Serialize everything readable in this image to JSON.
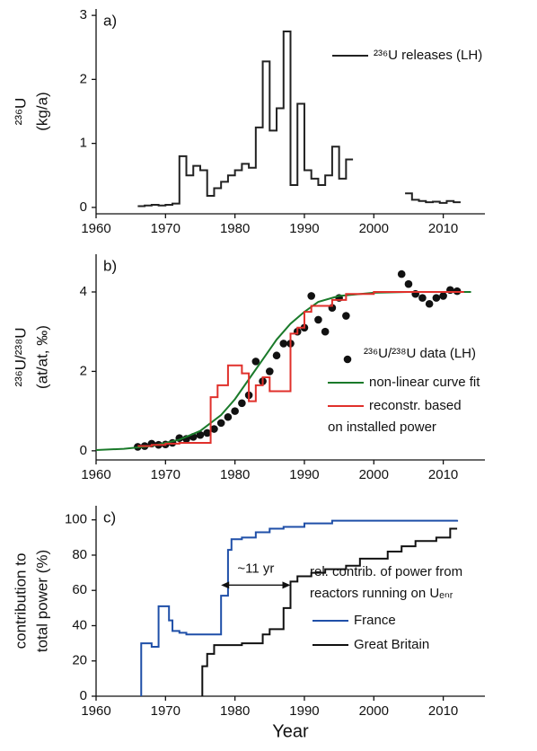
{
  "chart_data": [
    {
      "type": "line",
      "panel_label": "a)",
      "ylabel": [
        "²³⁶U",
        "(kg/a)"
      ],
      "xlim": [
        1960,
        2016
      ],
      "xticks": [
        1960,
        1970,
        1980,
        1990,
        2000,
        2010
      ],
      "ylim": [
        -0.1,
        3.1
      ],
      "yticks": [
        0,
        1,
        2,
        3
      ],
      "series": [
        {
          "name": "²³⁶U releases (LH)",
          "kind": "step",
          "color": "#222222",
          "x": [
            1966,
            1967,
            1968,
            1969,
            1970,
            1971,
            1972,
            1973,
            1974,
            1975,
            1976,
            1977,
            1978,
            1979,
            1980,
            1981,
            1982,
            1983,
            1984,
            1985,
            1986,
            1987,
            1988,
            1989,
            1990,
            1991,
            1992,
            1993,
            1994,
            1995,
            1996,
            1997,
            2000,
            2004.5,
            2005.5,
            2006.5,
            2007.5,
            2008.5,
            2009.5,
            2010.5,
            2011.5,
            2012.5
          ],
          "values": [
            0.02,
            0.03,
            0.04,
            0.03,
            0.04,
            0.06,
            0.8,
            0.5,
            0.65,
            0.58,
            0.18,
            0.3,
            0.4,
            0.5,
            0.58,
            0.68,
            0.62,
            1.25,
            2.28,
            1.2,
            1.55,
            2.75,
            0.35,
            1.62,
            0.58,
            0.45,
            0.35,
            0.5,
            0.95,
            0.45,
            0.75,
            0.75,
            null,
            0.22,
            0.12,
            0.1,
            0.08,
            0.09,
            0.07,
            0.1,
            0.08,
            0.08
          ]
        }
      ]
    },
    {
      "type": "line",
      "panel_label": "b)",
      "ylabel": [
        "²³⁶U/²³⁸U",
        "(at/at, ‰)"
      ],
      "xlim": [
        1960,
        2016
      ],
      "xticks": [
        1960,
        1970,
        1980,
        1990,
        2000,
        2010
      ],
      "ylim": [
        -0.23,
        4.95
      ],
      "yticks": [
        0,
        2,
        4
      ],
      "series": [
        {
          "name": "²³⁶U/²³⁸U data (LH)",
          "kind": "scatter",
          "color": "#111111",
          "x": [
            1966,
            1967,
            1968,
            1969,
            1970,
            1971,
            1972,
            1973,
            1974,
            1975,
            1976,
            1977,
            1978,
            1979,
            1980,
            1981,
            1982,
            1983,
            1984,
            1985,
            1986,
            1987,
            1988,
            1989,
            1990,
            1991,
            1992,
            1993,
            1994,
            1995,
            1996,
            2004,
            2005,
            2006,
            2007,
            2008,
            2009,
            2010,
            2011,
            2012
          ],
          "values": [
            0.1,
            0.12,
            0.18,
            0.15,
            0.16,
            0.2,
            0.32,
            0.3,
            0.35,
            0.4,
            0.45,
            0.55,
            0.7,
            0.85,
            1.0,
            1.2,
            1.4,
            2.25,
            1.75,
            2.0,
            2.4,
            2.7,
            2.7,
            3.0,
            3.1,
            3.9,
            3.3,
            3.0,
            3.6,
            3.85,
            3.4,
            4.45,
            4.2,
            3.95,
            3.85,
            3.7,
            3.85,
            3.9,
            4.05,
            4.02
          ]
        },
        {
          "name": "non-linear curve fit",
          "kind": "line",
          "color": "#1a7a2a",
          "x": [
            1960,
            1964,
            1968,
            1972,
            1975,
            1978,
            1980,
            1982,
            1984,
            1986,
            1988,
            1990,
            1992,
            1995,
            2000,
            2005,
            2014
          ],
          "values": [
            0.02,
            0.05,
            0.12,
            0.28,
            0.5,
            0.9,
            1.3,
            1.8,
            2.3,
            2.8,
            3.2,
            3.5,
            3.75,
            3.9,
            3.98,
            4.0,
            4.0
          ]
        },
        {
          "name": "reconstr. based\non installed power",
          "kind": "step",
          "color": "#e0302b",
          "x": [
            1966,
            1968,
            1970,
            1972,
            1976.5,
            1977.5,
            1979,
            1981,
            1982,
            1983,
            1984,
            1985,
            1988,
            1989,
            1990,
            1991,
            1994,
            1996,
            2000,
            2013
          ],
          "values": [
            0.12,
            0.15,
            0.18,
            0.2,
            1.35,
            1.65,
            2.15,
            1.95,
            1.25,
            1.65,
            1.85,
            1.5,
            2.95,
            3.1,
            3.5,
            3.65,
            3.8,
            3.95,
            4.0,
            4.0
          ]
        }
      ]
    },
    {
      "type": "line",
      "panel_label": "c)",
      "ylabel": [
        "contribution to",
        "total power (%)"
      ],
      "xlabel": "Year",
      "xlim": [
        1960,
        2016
      ],
      "xticks": [
        1960,
        1970,
        1980,
        1990,
        2000,
        2010
      ],
      "ylim": [
        0,
        108
      ],
      "yticks": [
        0,
        20,
        40,
        60,
        80,
        100
      ],
      "annotation": "rel. contrib. of power from\nreactors running on Uₑₙᵣ",
      "interval": {
        "label": "~11 yr",
        "x": [
          1978,
          1988
        ],
        "y": 63
      },
      "series": [
        {
          "name": "France",
          "kind": "step",
          "color": "#1f4fa8",
          "x": [
            1966.5,
            1966.5,
            1968,
            1969,
            1970.5,
            1971,
            1972,
            1973,
            1978,
            1979,
            1979.5,
            1981,
            1983,
            1985,
            1987,
            1990,
            1994,
            2012
          ],
          "values": [
            0,
            30,
            28,
            51,
            43,
            37,
            36,
            35,
            57,
            83,
            89,
            90,
            93,
            95,
            96,
            98,
            99.5,
            100
          ]
        },
        {
          "name": "Great Britain",
          "kind": "step",
          "color": "#111111",
          "x": [
            1975.3,
            1975.3,
            1976,
            1977,
            1981,
            1984,
            1985,
            1987,
            1988,
            1989,
            1991,
            1993,
            1996,
            1998,
            2002,
            2004,
            2006,
            2009,
            2011,
            2012
          ],
          "values": [
            0,
            17,
            24,
            29,
            30,
            35,
            38,
            50,
            65,
            68,
            70,
            72,
            74,
            78,
            82,
            85,
            88,
            90,
            95,
            95
          ]
        }
      ]
    }
  ]
}
